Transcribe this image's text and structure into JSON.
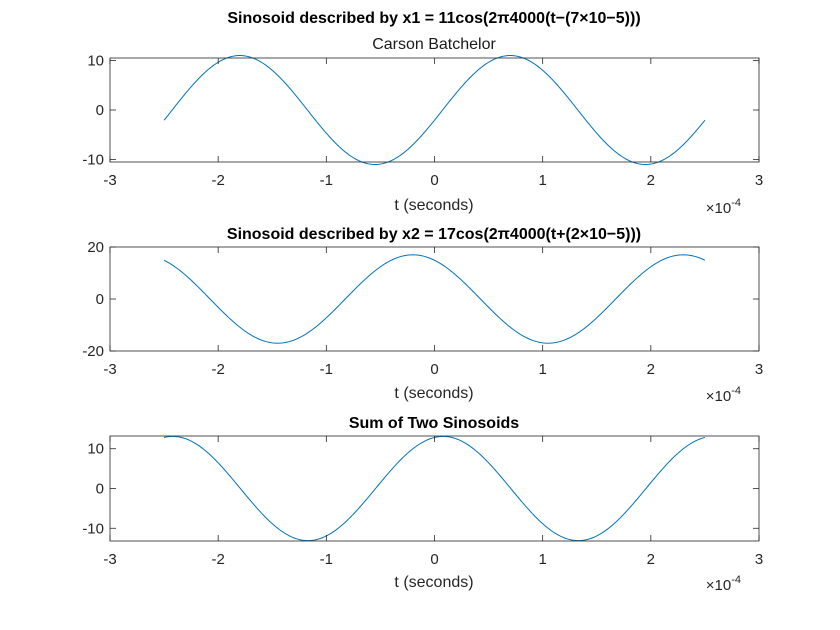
{
  "chart_data": [
    {
      "type": "line",
      "title": "Sinosoid described by x1 = 11cos(2π4000(t−(7×10−5)))",
      "subtitle": "Carson Batchelor",
      "xlabel": "t (seconds)",
      "x_exponent_base": "×10",
      "x_exponent_power": "-4",
      "xlim": [
        -3,
        3
      ],
      "ylim": [
        -10.5,
        10.5
      ],
      "xticks": [
        -3,
        -2,
        -1,
        0,
        1,
        2,
        3
      ],
      "xtick_labels": [
        "-3",
        "-2",
        "-1",
        "0",
        "1",
        "2",
        "3"
      ],
      "yticks": [
        -10,
        0,
        10
      ],
      "ytick_labels": [
        "-10",
        "0",
        "10"
      ],
      "series": [
        {
          "amplitude": 11,
          "frequency_hz": 4000,
          "phase_sign": -1,
          "shift": 0.7,
          "t_range": [
            -2.5,
            2.5
          ]
        }
      ]
    },
    {
      "type": "line",
      "title": "Sinosoid described by x2 = 17cos(2π4000(t+(2×10−5)))",
      "xlabel": "t (seconds)",
      "x_exponent_base": "×10",
      "x_exponent_power": "-4",
      "xlim": [
        -3,
        3
      ],
      "ylim": [
        -20,
        20
      ],
      "xticks": [
        -3,
        -2,
        -1,
        0,
        1,
        2,
        3
      ],
      "xtick_labels": [
        "-3",
        "-2",
        "-1",
        "0",
        "1",
        "2",
        "3"
      ],
      "yticks": [
        -20,
        0,
        20
      ],
      "ytick_labels": [
        "-20",
        "0",
        "20"
      ],
      "series": [
        {
          "amplitude": 17,
          "frequency_hz": 4000,
          "phase_sign": 1,
          "shift": 0.2,
          "t_range": [
            -2.5,
            2.5
          ]
        }
      ]
    },
    {
      "type": "line",
      "title": "Sum of Two Sinosoids",
      "xlabel": "t (seconds)",
      "x_exponent_base": "×10",
      "x_exponent_power": "-4",
      "xlim": [
        -3,
        3
      ],
      "ylim": [
        -13.2,
        13.2
      ],
      "xticks": [
        -3,
        -2,
        -1,
        0,
        1,
        2,
        3
      ],
      "xtick_labels": [
        "-3",
        "-2",
        "-1",
        "0",
        "1",
        "2",
        "3"
      ],
      "yticks": [
        -10,
        0,
        10
      ],
      "ytick_labels": [
        "-10",
        "0",
        "10"
      ],
      "series": [
        {
          "sum_of": [
            0,
            1
          ],
          "t_range": [
            -2.5,
            2.5
          ]
        }
      ]
    }
  ],
  "colors": {
    "line": "#0072BD",
    "axes": "#262626"
  }
}
